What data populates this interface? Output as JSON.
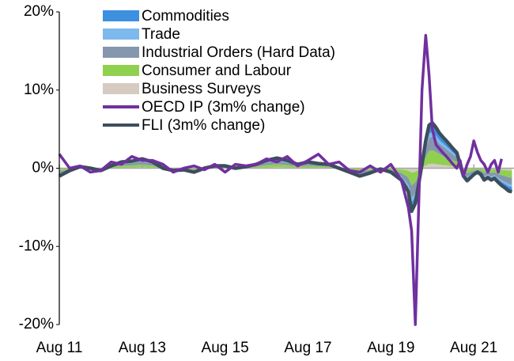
{
  "chart_data": {
    "type": "stacked_area_line",
    "x": [
      2011.58,
      2011.83,
      2012.08,
      2012.33,
      2012.58,
      2012.83,
      2013.08,
      2013.33,
      2013.58,
      2013.83,
      2014.08,
      2014.33,
      2014.58,
      2014.83,
      2015.08,
      2015.33,
      2015.58,
      2015.83,
      2016.08,
      2016.33,
      2016.58,
      2016.83,
      2017.08,
      2017.33,
      2017.58,
      2017.83,
      2018.08,
      2018.33,
      2018.58,
      2018.83,
      2019.08,
      2019.33,
      2019.58,
      2019.83,
      2020.0,
      2020.08,
      2020.17,
      2020.25,
      2020.33,
      2020.42,
      2020.5,
      2020.58,
      2020.67,
      2020.75,
      2020.83,
      2020.92,
      2021.0,
      2021.08,
      2021.17,
      2021.25,
      2021.33,
      2021.42,
      2021.5,
      2021.58,
      2021.67,
      2021.75,
      2021.83,
      2021.92,
      2022.0,
      2022.08,
      2022.17,
      2022.25,
      2022.33,
      2022.42,
      2022.5
    ],
    "series": [
      {
        "name": "Commodities",
        "color": "#3d8fe0",
        "kind": "area",
        "values": [
          -0.2,
          -0.06,
          0.04,
          0,
          -0.06,
          0.06,
          0.16,
          0.18,
          0.24,
          0.16,
          0,
          -0.06,
          -0.04,
          -0.1,
          0,
          0.06,
          0.06,
          0,
          0.04,
          0.1,
          0.2,
          0.26,
          0.2,
          0.1,
          0.16,
          0.12,
          0.1,
          0,
          -0.1,
          -0.2,
          -0.12,
          -0.02,
          -0.1,
          -0.3,
          -0.6,
          -1.1,
          -0.9,
          -0.4,
          0.1,
          0.7,
          1.1,
          1.16,
          1.04,
          0.9,
          0.8,
          0.7,
          0.6,
          0.5,
          0.4,
          0.1,
          -0.2,
          -0.32,
          -0.24,
          -0.16,
          -0.1,
          -0.16,
          -0.3,
          -0.24,
          -0.3,
          -0.26,
          -0.36,
          -0.44,
          -0.5,
          -0.58,
          -0.6
        ]
      },
      {
        "name": "Trade",
        "color": "#7db9ec",
        "kind": "area",
        "values": [
          -0.1,
          -0.03,
          0.02,
          0,
          -0.03,
          0.03,
          0.08,
          0.09,
          0.12,
          0.08,
          0,
          -0.03,
          -0.02,
          -0.05,
          0,
          0.03,
          0.03,
          0,
          0.02,
          0.05,
          0.1,
          0.13,
          0.1,
          0.05,
          0.08,
          0.06,
          0.05,
          0,
          -0.05,
          -0.1,
          -0.06,
          -0.01,
          -0.05,
          -0.15,
          -0.3,
          -0.55,
          -0.45,
          -0.2,
          0.05,
          0.35,
          0.55,
          0.58,
          0.52,
          0.45,
          0.4,
          0.35,
          0.3,
          0.25,
          0.2,
          0.05,
          -0.1,
          -0.16,
          -0.12,
          -0.08,
          -0.05,
          -0.08,
          -0.15,
          -0.12,
          -0.15,
          -0.13,
          -0.18,
          -0.22,
          -0.25,
          -0.29,
          -0.3
        ]
      },
      {
        "name": "Industrial Orders (Hard Data)",
        "color": "#8597ad",
        "kind": "area",
        "values": [
          -0.3,
          -0.09,
          0.06,
          0,
          -0.09,
          0.09,
          0.24,
          0.27,
          0.36,
          0.24,
          0,
          -0.09,
          -0.06,
          -0.15,
          0,
          0.09,
          0.09,
          0,
          0.06,
          0.15,
          0.3,
          0.39,
          0.3,
          0.15,
          0.24,
          0.18,
          0.15,
          0,
          -0.15,
          -0.3,
          -0.18,
          -0.03,
          -0.15,
          -0.45,
          -0.9,
          -1.65,
          -1.35,
          -0.6,
          0.15,
          1.05,
          1.65,
          1.74,
          1.56,
          1.35,
          1.2,
          1.05,
          0.9,
          0.75,
          0.6,
          0.15,
          -0.3,
          -0.48,
          -0.36,
          -0.24,
          -0.15,
          -0.24,
          -0.45,
          -0.36,
          -0.45,
          -0.39,
          -0.54,
          -0.66,
          -0.75,
          -0.87,
          -0.9
        ]
      },
      {
        "name": "Consumer and Labour",
        "color": "#8fd14f",
        "kind": "area",
        "values": [
          -0.3,
          -0.09,
          0.06,
          0,
          -0.09,
          0.09,
          0.24,
          0.27,
          0.36,
          0.24,
          0,
          -0.09,
          -0.06,
          -0.15,
          0,
          0.09,
          0.09,
          0,
          0.06,
          0.15,
          0.3,
          0.39,
          0.3,
          0.15,
          0.24,
          0.18,
          0.15,
          0,
          -0.15,
          -0.3,
          -0.18,
          -0.03,
          -0.15,
          -0.45,
          -0.9,
          -1.65,
          -1.35,
          -0.6,
          0.15,
          1.05,
          1.65,
          1.74,
          1.56,
          1.35,
          1.2,
          1.05,
          0.9,
          0.75,
          0.6,
          0.15,
          -0.3,
          -0.48,
          -0.36,
          -0.24,
          -0.15,
          -0.24,
          -0.45,
          -0.36,
          -0.45,
          -0.39,
          -0.54,
          -0.66,
          -0.75,
          -0.87,
          -0.9
        ]
      },
      {
        "name": "Business Surveys",
        "color": "#d6cbc1",
        "kind": "area",
        "values": [
          -0.1,
          -0.03,
          0.02,
          0,
          -0.03,
          0.03,
          0.08,
          0.09,
          0.12,
          0.08,
          0,
          -0.03,
          -0.02,
          -0.05,
          0,
          0.03,
          0.03,
          0,
          0.02,
          0.05,
          0.1,
          0.13,
          0.1,
          0.05,
          0.08,
          0.06,
          0.05,
          0,
          -0.05,
          -0.1,
          -0.06,
          -0.01,
          -0.05,
          -0.15,
          -0.3,
          -0.55,
          -0.45,
          -0.2,
          0.05,
          0.35,
          0.55,
          0.58,
          0.52,
          0.45,
          0.4,
          0.35,
          0.3,
          0.25,
          0.2,
          0.05,
          -0.1,
          -0.16,
          -0.12,
          -0.08,
          -0.05,
          -0.08,
          -0.15,
          -0.12,
          -0.15,
          -0.13,
          -0.18,
          -0.22,
          -0.25,
          -0.29,
          -0.3
        ]
      },
      {
        "name": "OECD IP (3m% change)",
        "color": "#7030a0",
        "kind": "line",
        "values": [
          1.8,
          0,
          0.3,
          -0.5,
          -0.3,
          0.8,
          0.5,
          1.5,
          1.0,
          1.0,
          0.5,
          -0.5,
          0,
          0.3,
          -0.2,
          0.5,
          -0.5,
          0.5,
          0.3,
          0.5,
          1.2,
          0.8,
          1.5,
          0.3,
          1.0,
          1.8,
          0.5,
          0.8,
          -0.3,
          -0.5,
          0.3,
          -0.5,
          0.5,
          -1.5,
          -5,
          -8,
          -20,
          -5,
          10,
          17,
          12,
          5,
          3,
          2.5,
          2,
          1.5,
          1,
          0.5,
          0,
          1,
          -1,
          0.5,
          1.5,
          3.5,
          2,
          1,
          0.5,
          -0.5,
          0.5,
          1.0,
          -0.5,
          1.2,
          null,
          null,
          null
        ]
      },
      {
        "name": "FLI (3m% change)",
        "color": "#3c4e5c",
        "kind": "line",
        "values": [
          -1.0,
          -0.3,
          0.2,
          0,
          -0.3,
          0.3,
          0.8,
          0.9,
          1.2,
          0.8,
          0,
          -0.3,
          -0.2,
          -0.5,
          0,
          0.3,
          0.3,
          0,
          0.2,
          0.5,
          1.0,
          1.3,
          1.0,
          0.5,
          0.8,
          0.6,
          0.5,
          0,
          -0.5,
          -1.0,
          -0.6,
          -0.1,
          -0.5,
          -1.5,
          -3.0,
          -5.5,
          -4.5,
          -2,
          0.5,
          3.5,
          5.5,
          5.8,
          5.2,
          4.5,
          4.0,
          3.5,
          3.0,
          2.5,
          2.0,
          0.5,
          -1.0,
          -1.6,
          -1.2,
          -0.8,
          -0.5,
          -0.8,
          -1.5,
          -1.2,
          -1.5,
          -1.3,
          -1.8,
          -2.2,
          -2.5,
          -2.9,
          -3.0
        ]
      }
    ],
    "xlim": [
      2011.58,
      2022.55
    ],
    "xticks": [
      {
        "value": 2011.58,
        "label": "Aug 11"
      },
      {
        "value": 2013.58,
        "label": "Aug 13"
      },
      {
        "value": 2015.58,
        "label": "Aug 15"
      },
      {
        "value": 2017.58,
        "label": "Aug 17"
      },
      {
        "value": 2019.58,
        "label": "Aug 19"
      },
      {
        "value": 2021.58,
        "label": "Aug 21"
      }
    ],
    "ylim": [
      -20,
      20
    ],
    "yticks": [
      {
        "value": 20,
        "label": "20%"
      },
      {
        "value": 10,
        "label": "10%"
      },
      {
        "value": 0,
        "label": "0%"
      },
      {
        "value": -10,
        "label": "-10%"
      },
      {
        "value": -20,
        "label": "-20%"
      }
    ],
    "legend": "upper-left"
  }
}
